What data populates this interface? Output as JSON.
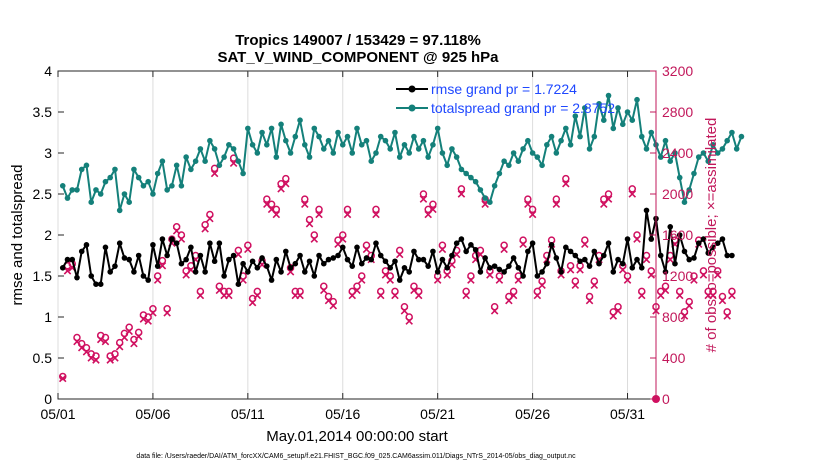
{
  "chart_data": {
    "type": "line",
    "title": "Tropics 149007 / 153429 = 97.118%",
    "subtitle": "SAT_V_WIND_COMPONENT @ 925 hPa",
    "xlabel": "May.01,2014 00:00:00 start",
    "ylabel_left": "rmse and totalspread",
    "ylabel_right": "# of obs: o=possible; ×=assimilated",
    "xlim": [
      0,
      31.5
    ],
    "ylim_left": [
      0,
      4
    ],
    "ylim_right": [
      0,
      3200
    ],
    "x_ticks": [
      0,
      5,
      10,
      15,
      20,
      25,
      30
    ],
    "x_tick_labels": [
      "05/01",
      "05/06",
      "05/11",
      "05/16",
      "05/21",
      "05/26",
      "05/31"
    ],
    "y_ticks_left": [
      "0",
      "0.5",
      "1",
      "1.5",
      "2",
      "2.5",
      "3",
      "3.5",
      "4"
    ],
    "y_ticks_right": [
      "0",
      "400",
      "800",
      "1200",
      "1600",
      "2000",
      "2400",
      "2800",
      "3200"
    ],
    "footer": "data file: /Users/raeder/DAI/ATM_forcXX/CAM6_setup/f.e21.FHIST_BGC.f09_025.CAM6assim.011/Diags_NTrS_2014-05/obs_diag_output.nc",
    "colors": {
      "rmse": "#000000",
      "spread": "#14807a",
      "obs": "#d01060",
      "legend_text": "#1f48ff",
      "right_axis": "#c2185b"
    },
    "series": [
      {
        "name": "rmse grand pr = 1.7224",
        "axis": "left",
        "values": [
          1.6,
          1.7,
          1.7,
          1.48,
          1.8,
          1.88,
          1.5,
          1.4,
          1.4,
          1.85,
          1.55,
          1.62,
          1.9,
          1.72,
          1.7,
          1.55,
          1.75,
          1.5,
          1.45,
          1.88,
          1.62,
          1.95,
          1.75,
          1.95,
          1.9,
          1.65,
          1.7,
          1.85,
          1.55,
          1.75,
          1.55,
          1.9,
          1.68,
          1.9,
          1.5,
          1.7,
          1.75,
          1.4,
          1.65,
          1.55,
          1.68,
          1.6,
          1.72,
          1.62,
          1.45,
          1.7,
          1.55,
          1.8,
          1.6,
          1.65,
          1.75,
          1.55,
          1.68,
          1.5,
          1.75,
          1.65,
          1.7,
          1.72,
          1.75,
          1.85,
          1.7,
          1.62,
          1.85,
          1.65,
          1.72,
          1.7,
          1.9,
          1.75,
          1.68,
          1.6,
          1.68,
          1.45,
          1.6,
          1.55,
          1.8,
          1.7,
          1.7,
          1.62,
          1.8,
          1.55,
          1.7,
          1.6,
          1.75,
          1.9,
          1.95,
          1.8,
          1.88,
          1.82,
          1.55,
          1.72,
          1.6,
          1.62,
          1.58,
          1.55,
          1.62,
          1.72,
          1.6,
          1.5,
          1.8,
          1.9,
          1.5,
          1.55,
          1.65,
          1.88,
          1.72,
          1.55,
          1.85,
          1.8,
          1.75,
          1.68,
          1.7,
          1.62,
          1.8,
          1.65,
          1.75,
          1.9,
          1.55,
          1.7,
          1.65,
          1.95,
          1.6,
          1.7,
          1.6,
          2.3,
          1.95,
          2.2,
          1.75,
          1.55,
          2.1,
          1.65,
          2.0,
          1.8,
          1.7,
          1.72,
          1.9,
          1.95,
          1.78,
          1.85,
          1.9,
          1.95,
          1.75,
          1.75
        ]
      },
      {
        "name": "totalspread grand pr = 2.8752",
        "axis": "left",
        "values": [
          2.6,
          2.45,
          2.55,
          2.55,
          2.8,
          2.85,
          2.4,
          2.55,
          2.5,
          2.65,
          2.7,
          2.8,
          2.3,
          2.5,
          2.4,
          2.8,
          2.7,
          2.6,
          2.65,
          2.5,
          2.75,
          2.9,
          2.55,
          2.6,
          2.85,
          2.6,
          2.95,
          2.8,
          2.9,
          3.05,
          2.9,
          3.15,
          3.05,
          2.85,
          2.95,
          3.1,
          3.05,
          2.9,
          2.75,
          3.3,
          3.1,
          3.0,
          3.25,
          3.1,
          3.3,
          2.95,
          3.35,
          3.15,
          3.0,
          3.2,
          3.4,
          3.1,
          2.95,
          3.3,
          3.2,
          3.05,
          3.15,
          3.0,
          3.25,
          3.1,
          3.2,
          3.0,
          3.3,
          3.1,
          3.15,
          2.9,
          3.0,
          3.2,
          3.15,
          3.05,
          3.25,
          2.95,
          3.1,
          3.0,
          3.2,
          3.05,
          3.15,
          2.95,
          3.1,
          3.3,
          3.0,
          2.85,
          3.05,
          2.95,
          2.8,
          2.75,
          2.7,
          2.65,
          2.55,
          2.45,
          2.4,
          2.6,
          2.75,
          2.9,
          2.85,
          3.0,
          2.9,
          3.05,
          3.15,
          3.0,
          2.95,
          2.85,
          3.1,
          3.2,
          3.0,
          3.15,
          3.3,
          3.1,
          3.45,
          3.2,
          3.55,
          3.05,
          3.2,
          3.6,
          3.4,
          3.7,
          3.3,
          3.55,
          3.35,
          3.5,
          3.4,
          3.65,
          3.2,
          3.05,
          3.25,
          3.1,
          2.95,
          3.15,
          2.9,
          3.0,
          2.7,
          2.4,
          2.55,
          2.75,
          2.95,
          3.0,
          2.9,
          3.1,
          3.0,
          3.05,
          3.15,
          3.25,
          3.05,
          3.2
        ]
      },
      {
        "name": "observations possible",
        "axis": "right",
        "marker": "o",
        "values": [
          220,
          1300,
          1320,
          600,
          540,
          500,
          440,
          420,
          620,
          600,
          420,
          440,
          550,
          640,
          700,
          580,
          650,
          820,
          800,
          880,
          1200,
          1350,
          880,
          1560,
          1680,
          1600,
          1250,
          1300,
          1400,
          1050,
          1700,
          1800,
          2250,
          1100,
          1050,
          1050,
          2350,
          1450,
          1200,
          1500,
          980,
          1050,
          1350,
          1950,
          1900,
          1850,
          2100,
          2150,
          1280,
          1050,
          1050,
          1950,
          1750,
          1600,
          1850,
          1100,
          1000,
          950,
          1550,
          1600,
          1850,
          1050,
          1100,
          1200,
          1500,
          1400,
          1850,
          1050,
          1250,
          1200,
          1050,
          1450,
          900,
          800,
          1100,
          1050,
          2000,
          1850,
          1900,
          1200,
          1500,
          1250,
          1350,
          1450,
          2050,
          1050,
          1200,
          1400,
          1450,
          1950,
          1250,
          900,
          1200,
          1500,
          1000,
          1050,
          1200,
          1550,
          1950,
          1850,
          1050,
          1150,
          1400,
          1550,
          1950,
          1250,
          2150,
          1300,
          1150,
          1300,
          1550,
          1000,
          1150,
          1400,
          1950,
          2000,
          850,
          900,
          1300,
          1200,
          2050,
          1600,
          1050,
          1400,
          1250,
          900,
          1050,
          1100,
          1400,
          1550,
          1050,
          850,
          950,
          1200,
          1550,
          1250,
          1050,
          1050,
          1250,
          1000,
          850,
          1050
        ]
      },
      {
        "name": "observations assimilated",
        "axis": "right",
        "marker": "x",
        "values": [
          200,
          1250,
          1280,
          560,
          500,
          460,
          400,
          380,
          580,
          560,
          380,
          400,
          510,
          600,
          660,
          540,
          610,
          780,
          760,
          840,
          1160,
          1300,
          840,
          1520,
          1640,
          1560,
          1210,
          1260,
          1360,
          1010,
          1660,
          1760,
          2200,
          1060,
          1010,
          1010,
          2300,
          1410,
          1160,
          1460,
          940,
          1010,
          1310,
          1900,
          1850,
          1800,
          2050,
          2100,
          1240,
          1010,
          1010,
          1900,
          1710,
          1560,
          1800,
          1060,
          960,
          910,
          1510,
          1560,
          1800,
          1010,
          1060,
          1160,
          1460,
          1360,
          1800,
          1010,
          1210,
          1160,
          1010,
          1410,
          860,
          760,
          1060,
          1010,
          1950,
          1800,
          1850,
          1160,
          1460,
          1210,
          1310,
          1410,
          2000,
          1010,
          1160,
          1360,
          1410,
          1900,
          1210,
          860,
          1160,
          1460,
          960,
          1010,
          1160,
          1510,
          1900,
          1800,
          1010,
          1110,
          1360,
          1510,
          1900,
          1210,
          2100,
          1260,
          1110,
          1260,
          1510,
          960,
          1110,
          1360,
          1900,
          1950,
          810,
          860,
          1260,
          1160,
          2000,
          1560,
          1010,
          1360,
          1210,
          860,
          1010,
          1060,
          1360,
          1510,
          1010,
          810,
          910,
          1160,
          1510,
          1210,
          1010,
          1010,
          1210,
          960,
          810,
          1010
        ]
      }
    ]
  }
}
